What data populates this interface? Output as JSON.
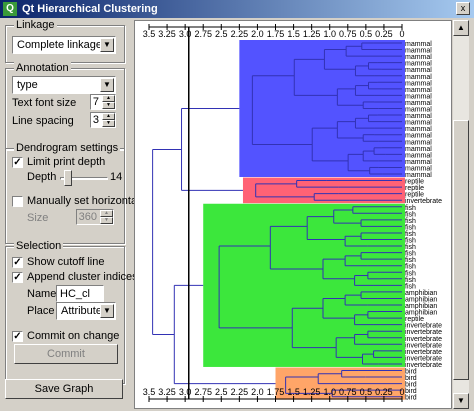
{
  "window": {
    "title": "Qt Hierarchical Clustering",
    "close_label": "x"
  },
  "linkage": {
    "group_title": "Linkage",
    "selected": "Complete linkage"
  },
  "annotation": {
    "group_title": "Annotation",
    "selected": "type",
    "font_size_label": "Text font size",
    "font_size_value": "7",
    "line_spacing_label": "Line spacing",
    "line_spacing_value": "3"
  },
  "dendrogram": {
    "group_title": "Dendrogram settings",
    "limit_depth_label": "Limit print depth",
    "depth_label": "Depth",
    "depth_value": "14",
    "manual_width_label": "Manually set horizontal size",
    "size_label": "Size",
    "size_value": "360"
  },
  "selection": {
    "group_title": "Selection",
    "show_cutoff_label": "Show cutoff line",
    "append_indices_label": "Append cluster indices",
    "name_label": "Name",
    "name_value": "HC_cl",
    "place_label": "Place",
    "place_value": "Attribute",
    "commit_on_change_label": "Commit on change",
    "commit_label": "Commit"
  },
  "save_graph_label": "Save Graph",
  "axis": {
    "ticks": [
      "3.5",
      "3.25",
      "3.0",
      "2.75",
      "2.5",
      "2.25",
      "2.0",
      "1.75",
      "1.5",
      "1.25",
      "1.0",
      "0.75",
      "0.5",
      "0.25",
      "0"
    ]
  },
  "cutoff": {
    "value": 2.95
  },
  "leaves": [
    "mammal",
    "mammal",
    "mammal",
    "mammal",
    "mammal",
    "mammal",
    "mammal",
    "mammal",
    "mammal",
    "mammal",
    "mammal",
    "mammal",
    "mammal",
    "mammal",
    "mammal",
    "mammal",
    "mammal",
    "mammal",
    "mammal",
    "mammal",
    "mammal",
    "reptile",
    "reptile",
    "reptile",
    "invertebrate",
    "fish",
    "fish",
    "fish",
    "fish",
    "fish",
    "fish",
    "fish",
    "fish",
    "fish",
    "fish",
    "fish",
    "fish",
    "fish",
    "amphibian",
    "amphibian",
    "amphibian",
    "amphibian",
    "reptile",
    "invertebrate",
    "invertebrate",
    "invertebrate",
    "invertebrate",
    "invertebrate",
    "invertebrate",
    "invertebrate",
    "bird",
    "bird",
    "bird",
    "bird",
    "bird"
  ],
  "colors": {
    "cluster_mammal": "#4a4aff",
    "cluster_reptile": "#ff5a6e",
    "cluster_mixed": "#32e632",
    "cluster_bird": "#ffa060",
    "branch": "#3232b4"
  }
}
